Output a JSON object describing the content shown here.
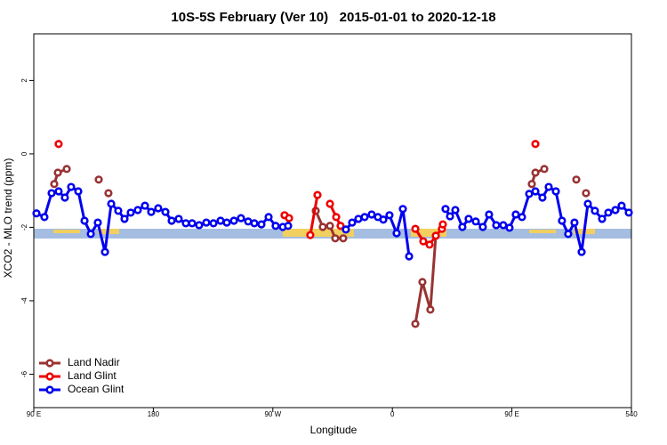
{
  "chart_data": {
    "type": "line",
    "title": "10S-5S February (Ver 10)   2015-01-01 to 2020-12-18",
    "x_label": "Longitude",
    "y_label": "XCO2 - MLO trend (ppm)",
    "xlim": [
      90,
      540
    ],
    "ylim": [
      -6.91,
      3.27
    ],
    "xticks": [
      {
        "value": 90,
        "label": "90 E"
      },
      180,
      {
        "value": 270,
        "label": "90 W"
      },
      {
        "value": 360,
        "label": "0"
      },
      {
        "value": 450,
        "label": "90 E"
      },
      540
    ],
    "yticks": [
      2,
      0,
      -2,
      -4,
      -6
    ],
    "legend": "bottom-left",
    "series": [
      {
        "name": "Land Nadir",
        "color": "#993333",
        "x": [
          105.4,
          108.1,
          114.8,
          null,
          138.9,
          null,
          146.2,
          null,
          302.3,
          307.6,
          313.0,
          317.0,
          323.0,
          null,
          377.3,
          382.6,
          388.6,
          392.7,
          null,
          465.0,
          467.7,
          474.4,
          null,
          498.5,
          null,
          505.8
        ],
        "values": [
          -0.82,
          -0.51,
          -0.41,
          null,
          -0.7,
          null,
          -1.07,
          null,
          -1.55,
          -1.99,
          -1.96,
          -2.3,
          -2.3,
          null,
          -4.63,
          -3.49,
          -4.24,
          -2.23,
          null,
          -0.82,
          -0.51,
          -0.41,
          null,
          -0.7,
          null,
          -1.07
        ]
      },
      {
        "name": "Land Glint",
        "color": "#ee0000",
        "x": [
          108.7,
          null,
          278.8,
          282.2,
          null,
          298.2,
          303.6,
          null,
          313.0,
          317.7,
          321.0,
          null,
          377.3,
          383.3,
          388.0,
          392.7,
          397.3,
          398.0,
          null,
          467.7
        ],
        "values": [
          0.27,
          null,
          -1.67,
          -1.75,
          null,
          -2.21,
          -1.12,
          null,
          -1.36,
          -1.72,
          -1.96,
          null,
          -2.04,
          -2.38,
          -2.47,
          -2.23,
          -2.04,
          -1.92,
          null,
          0.27
        ]
      },
      {
        "name": "Ocean Glint",
        "color": "#0000ee",
        "x": [
          92.0,
          98.0,
          103.4,
          108.7,
          113.4,
          118.1,
          123.5,
          128.2,
          132.9,
          138.2,
          143.6,
          148.3,
          153.6,
          158.3,
          163.0,
          168.3,
          173.7,
          178.4,
          183.7,
          189.1,
          193.8,
          199.1,
          204.5,
          209.2,
          214.5,
          219.9,
          225.3,
          230.6,
          235.3,
          240.7,
          246.0,
          251.4,
          256.1,
          261.4,
          266.8,
          272.1,
          277.5,
          281.5,
          null,
          325.0,
          329.7,
          334.4,
          339.1,
          344.4,
          349.1,
          353.2,
          357.8,
          363.2,
          367.9,
          372.6,
          null,
          400.0,
          403.4,
          407.4,
          412.7,
          417.4,
          422.8,
          428.1,
          432.8,
          438.2,
          443.5,
          448.2,
          452.9,
          457.6,
          463.0,
          467.7,
          473.0,
          477.7,
          483.1,
          487.7,
          492.4,
          497.1,
          502.5,
          507.2,
          512.5,
          517.9,
          522.6,
          527.9,
          532.6,
          538.0
        ],
        "values": [
          -1.62,
          -1.72,
          -1.07,
          -1.02,
          -1.19,
          -0.9,
          -1.02,
          -1.82,
          -2.18,
          -1.87,
          -2.67,
          -1.36,
          -1.55,
          -1.77,
          -1.6,
          -1.53,
          -1.41,
          -1.58,
          -1.48,
          -1.58,
          -1.82,
          -1.77,
          -1.89,
          -1.89,
          -1.94,
          -1.87,
          -1.89,
          -1.82,
          -1.87,
          -1.82,
          -1.75,
          -1.84,
          -1.89,
          -1.92,
          -1.72,
          -1.96,
          -1.99,
          -1.96,
          null,
          -2.06,
          -1.87,
          -1.77,
          -1.72,
          -1.65,
          -1.72,
          -1.79,
          -1.67,
          -2.16,
          -1.5,
          -2.79,
          null,
          -1.5,
          -1.7,
          -1.53,
          -1.99,
          -1.77,
          -1.84,
          -1.99,
          -1.65,
          -1.94,
          -1.94,
          -2.01,
          -1.65,
          -1.72,
          -1.09,
          -1.02,
          -1.19,
          -0.9,
          -1.02,
          -1.82,
          -2.18,
          -1.87,
          -2.67,
          -1.36,
          -1.55,
          -1.77,
          -1.6,
          -1.53,
          -1.41,
          -1.6
        ]
      }
    ]
  }
}
